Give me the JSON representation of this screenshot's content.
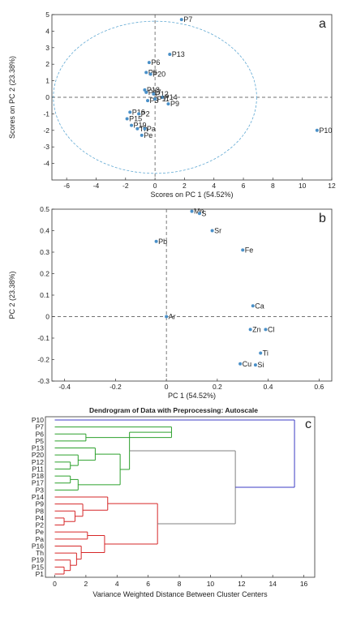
{
  "chart_data": [
    {
      "type": "scatter",
      "panel_label": "a",
      "xlabel": "Scores on PC 1 (54.52%)",
      "ylabel": "Scores on PC 2 (23.38%)",
      "xlim": [
        -7,
        12
      ],
      "ylim": [
        -5,
        5
      ],
      "xticks": [
        -6,
        -4,
        -2,
        0,
        2,
        4,
        6,
        8,
        10,
        12
      ],
      "yticks": [
        -4,
        -3,
        -2,
        -1,
        0,
        1,
        2,
        3,
        4,
        5
      ],
      "ellipse": {
        "rx": 6.9,
        "ry": 4.6
      },
      "points": [
        {
          "label": "P7",
          "x": 1.8,
          "y": 4.7
        },
        {
          "label": "P13",
          "x": 1.0,
          "y": 2.6
        },
        {
          "label": "P6",
          "x": -0.4,
          "y": 2.1
        },
        {
          "label": "P5",
          "x": -0.6,
          "y": 1.5
        },
        {
          "label": "P20",
          "x": -0.3,
          "y": 1.4
        },
        {
          "label": "P18",
          "x": -0.7,
          "y": 0.45
        },
        {
          "label": "P17",
          "x": -0.6,
          "y": 0.3
        },
        {
          "label": "P12",
          "x": -0.1,
          "y": 0.2
        },
        {
          "label": "P14",
          "x": 0.5,
          "y": 0.0
        },
        {
          "label": "P3",
          "x": -0.5,
          "y": -0.2
        },
        {
          "label": "P11",
          "x": 0.0,
          "y": -0.1
        },
        {
          "label": "P9",
          "x": 0.9,
          "y": -0.4
        },
        {
          "label": "P16",
          "x": -1.7,
          "y": -0.9
        },
        {
          "label": "P2",
          "x": -1.1,
          "y": -1.0
        },
        {
          "label": "P15",
          "x": -1.9,
          "y": -1.3
        },
        {
          "label": "P19",
          "x": -1.6,
          "y": -1.7
        },
        {
          "label": "Th",
          "x": -1.2,
          "y": -1.9
        },
        {
          "label": "Pa",
          "x": -0.7,
          "y": -1.9
        },
        {
          "label": "Pe",
          "x": -0.9,
          "y": -2.3
        },
        {
          "label": "P10",
          "x": 11.0,
          "y": -2.0
        }
      ]
    },
    {
      "type": "scatter",
      "panel_label": "b",
      "xlabel": "PC 1 (54.52%)",
      "ylabel": "PC 2 (23.38%)",
      "xlim": [
        -0.45,
        0.65
      ],
      "ylim": [
        -0.3,
        0.5
      ],
      "xticks": [
        -0.4,
        -0.2,
        0,
        0.2,
        0.4,
        0.6
      ],
      "yticks": [
        -0.3,
        -0.2,
        -0.1,
        0,
        0.1,
        0.2,
        0.3,
        0.4,
        0.5
      ],
      "points": [
        {
          "label": "Mn",
          "x": 0.1,
          "y": 0.49
        },
        {
          "label": "S",
          "x": 0.13,
          "y": 0.48
        },
        {
          "label": "Sr",
          "x": 0.18,
          "y": 0.4
        },
        {
          "label": "Pb",
          "x": -0.04,
          "y": 0.35
        },
        {
          "label": "Fe",
          "x": 0.3,
          "y": 0.31
        },
        {
          "label": "Ca",
          "x": 0.34,
          "y": 0.05
        },
        {
          "label": "Ar",
          "x": 0.0,
          "y": 0.0
        },
        {
          "label": "Zn",
          "x": 0.33,
          "y": -0.06
        },
        {
          "label": "Cl",
          "x": 0.39,
          "y": -0.06
        },
        {
          "label": "Ti",
          "x": 0.37,
          "y": -0.17
        },
        {
          "label": "Cu",
          "x": 0.29,
          "y": -0.22
        },
        {
          "label": "Si",
          "x": 0.35,
          "y": -0.225
        }
      ]
    },
    {
      "type": "dendrogram",
      "panel_label": "c",
      "title": "Dendrogram of Data with Preprocessing: Autoscale",
      "xlabel": "Variance Weighted Distance Between Cluster Centers",
      "xlim": [
        -0.6,
        16.7
      ],
      "xticks": [
        0,
        2,
        4,
        6,
        8,
        10,
        12,
        14,
        16
      ],
      "leaves": [
        "P10",
        "P7",
        "P6",
        "P5",
        "P13",
        "P20",
        "P12",
        "P11",
        "P18",
        "P17",
        "P3",
        "P14",
        "P9",
        "P8",
        "P4",
        "P2",
        "Pe",
        "Pa",
        "P16",
        "Th",
        "P19",
        "P15",
        "P1"
      ],
      "colors": {
        "outlier": "#3b3bc4",
        "green": "#2ca02c",
        "red": "#d62728",
        "gray": "#808080"
      },
      "merges": [
        {
          "id": "m1",
          "a": "P6",
          "b": "P5",
          "height": 2.0,
          "color": "green"
        },
        {
          "id": "m2",
          "a": "P7",
          "b": "m1",
          "height": 7.5,
          "color": "green"
        },
        {
          "id": "m3",
          "a": "P12",
          "b": "P11",
          "height": 1.0,
          "color": "green"
        },
        {
          "id": "m4",
          "a": "P20",
          "b": "m3",
          "height": 1.5,
          "color": "green"
        },
        {
          "id": "m5",
          "a": "P13",
          "b": "m4",
          "height": 2.6,
          "color": "green"
        },
        {
          "id": "m6",
          "a": "P18",
          "b": "P17",
          "height": 1.0,
          "color": "green"
        },
        {
          "id": "m7",
          "a": "m6",
          "b": "P3",
          "height": 1.5,
          "color": "green"
        },
        {
          "id": "m8",
          "a": "m5",
          "b": "m7",
          "height": 4.2,
          "color": "green"
        },
        {
          "id": "m9",
          "a": "m2",
          "b": "m8",
          "height": 4.8,
          "color": "green"
        },
        {
          "id": "m10",
          "a": "P4",
          "b": "P2",
          "height": 0.6,
          "color": "red"
        },
        {
          "id": "m11",
          "a": "P8",
          "b": "m10",
          "height": 1.3,
          "color": "red"
        },
        {
          "id": "m12",
          "a": "P9",
          "b": "m11",
          "height": 1.8,
          "color": "red"
        },
        {
          "id": "m13",
          "a": "P14",
          "b": "m12",
          "height": 3.4,
          "color": "red"
        },
        {
          "id": "m14",
          "a": "Pe",
          "b": "Pa",
          "height": 2.1,
          "color": "red"
        },
        {
          "id": "m15",
          "a": "P15",
          "b": "P1",
          "height": 0.6,
          "color": "red"
        },
        {
          "id": "m16",
          "a": "P19",
          "b": "m15",
          "height": 1.0,
          "color": "red"
        },
        {
          "id": "m17",
          "a": "Th",
          "b": "m16",
          "height": 1.4,
          "color": "red"
        },
        {
          "id": "m18",
          "a": "P16",
          "b": "m17",
          "height": 1.7,
          "color": "red"
        },
        {
          "id": "m19",
          "a": "m14",
          "b": "m18",
          "height": 3.2,
          "color": "red"
        },
        {
          "id": "m20",
          "a": "m13",
          "b": "m19",
          "height": 6.6,
          "color": "red"
        },
        {
          "id": "m21",
          "a": "m9",
          "b": "m20",
          "height": 11.6,
          "color": "gray"
        },
        {
          "id": "m22",
          "a": "P10",
          "b": "m21",
          "height": 15.4,
          "color": "outlier"
        }
      ]
    }
  ]
}
